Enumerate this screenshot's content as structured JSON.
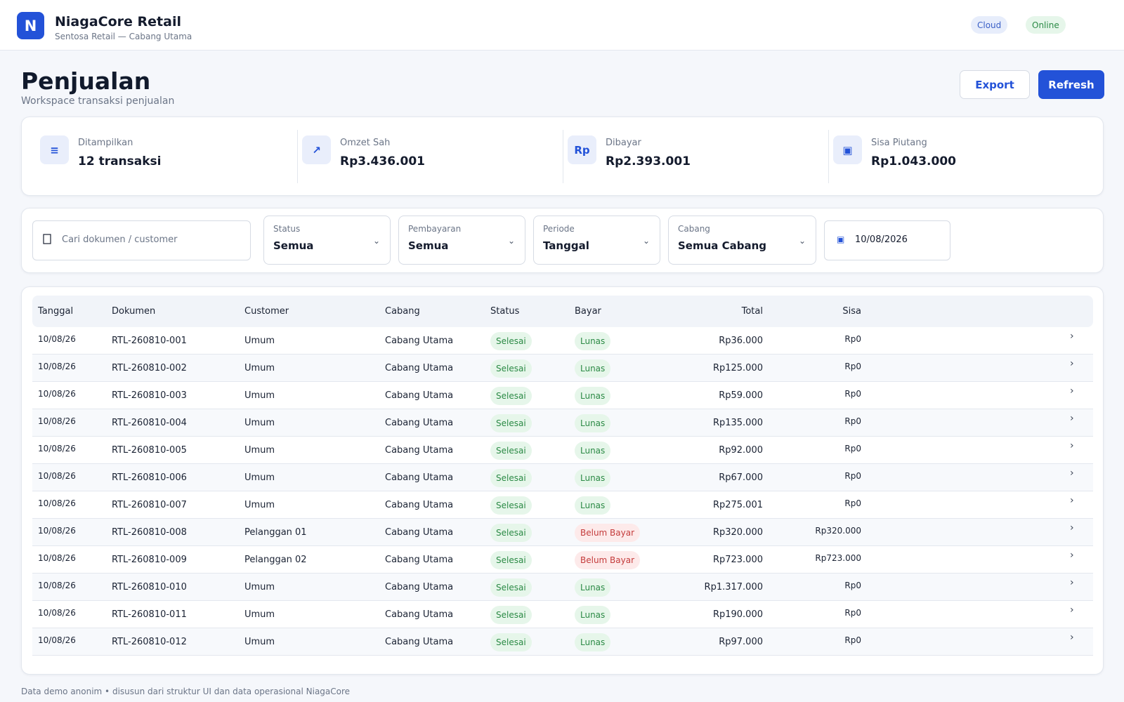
{
  "app": {
    "logo_letter": "N",
    "name": "NiagaCore Retail",
    "subtitle": "Sentosa Retail — Cabang Utama",
    "pills": {
      "cloud": "Cloud",
      "online": "Online"
    }
  },
  "header": {
    "title": "Penjualan",
    "subtitle": "Workspace transaksi penjualan",
    "export_label": "Export",
    "refresh_label": "Refresh"
  },
  "stats": [
    {
      "icon": "≡",
      "icon_name": "list-icon",
      "label": "Ditampilkan",
      "value": "12 transaksi"
    },
    {
      "icon": "↗",
      "icon_name": "trend-up-icon",
      "label": "Omzet Sah",
      "value": "Rp3.436.001"
    },
    {
      "icon": "Rp",
      "icon_name": "rupiah-icon",
      "label": "Dibayar",
      "value": "Rp2.393.001"
    },
    {
      "icon": "▣",
      "icon_name": "receivable-icon",
      "label": "Sisa Piutang",
      "value": "Rp1.043.000"
    }
  ],
  "filters": {
    "search_placeholder": "Cari dokumen / customer",
    "selects": [
      {
        "label": "Status",
        "value": "Semua"
      },
      {
        "label": "Pembayaran",
        "value": "Semua"
      },
      {
        "label": "Periode",
        "value": "Tanggal"
      },
      {
        "label": "Cabang",
        "value": "Semua Cabang"
      }
    ],
    "date_value": "10/08/2026"
  },
  "table": {
    "columns": [
      "Tanggal",
      "Dokumen",
      "Customer",
      "Cabang",
      "Status",
      "Bayar",
      "Total",
      "Sisa"
    ],
    "rows": [
      {
        "date": "10/08/26",
        "doc": "RTL-260810-001",
        "customer": "Umum",
        "branch": "Cabang Utama",
        "status": "Selesai",
        "pay": "Lunas",
        "total": "Rp36.000",
        "rest": "Rp0"
      },
      {
        "date": "10/08/26",
        "doc": "RTL-260810-002",
        "customer": "Umum",
        "branch": "Cabang Utama",
        "status": "Selesai",
        "pay": "Lunas",
        "total": "Rp125.000",
        "rest": "Rp0"
      },
      {
        "date": "10/08/26",
        "doc": "RTL-260810-003",
        "customer": "Umum",
        "branch": "Cabang Utama",
        "status": "Selesai",
        "pay": "Lunas",
        "total": "Rp59.000",
        "rest": "Rp0"
      },
      {
        "date": "10/08/26",
        "doc": "RTL-260810-004",
        "customer": "Umum",
        "branch": "Cabang Utama",
        "status": "Selesai",
        "pay": "Lunas",
        "total": "Rp135.000",
        "rest": "Rp0"
      },
      {
        "date": "10/08/26",
        "doc": "RTL-260810-005",
        "customer": "Umum",
        "branch": "Cabang Utama",
        "status": "Selesai",
        "pay": "Lunas",
        "total": "Rp92.000",
        "rest": "Rp0"
      },
      {
        "date": "10/08/26",
        "doc": "RTL-260810-006",
        "customer": "Umum",
        "branch": "Cabang Utama",
        "status": "Selesai",
        "pay": "Lunas",
        "total": "Rp67.000",
        "rest": "Rp0"
      },
      {
        "date": "10/08/26",
        "doc": "RTL-260810-007",
        "customer": "Umum",
        "branch": "Cabang Utama",
        "status": "Selesai",
        "pay": "Lunas",
        "total": "Rp275.001",
        "rest": "Rp0"
      },
      {
        "date": "10/08/26",
        "doc": "RTL-260810-008",
        "customer": "Pelanggan 01",
        "branch": "Cabang Utama",
        "status": "Selesai",
        "pay": "Belum Bayar",
        "total": "Rp320.000",
        "rest": "Rp320.000"
      },
      {
        "date": "10/08/26",
        "doc": "RTL-260810-009",
        "customer": "Pelanggan 02",
        "branch": "Cabang Utama",
        "status": "Selesai",
        "pay": "Belum Bayar",
        "total": "Rp723.000",
        "rest": "Rp723.000"
      },
      {
        "date": "10/08/26",
        "doc": "RTL-260810-010",
        "customer": "Umum",
        "branch": "Cabang Utama",
        "status": "Selesai",
        "pay": "Lunas",
        "total": "Rp1.317.000",
        "rest": "Rp0"
      },
      {
        "date": "10/08/26",
        "doc": "RTL-260810-011",
        "customer": "Umum",
        "branch": "Cabang Utama",
        "status": "Selesai",
        "pay": "Lunas",
        "total": "Rp190.000",
        "rest": "Rp0"
      },
      {
        "date": "10/08/26",
        "doc": "RTL-260810-012",
        "customer": "Umum",
        "branch": "Cabang Utama",
        "status": "Selesai",
        "pay": "Lunas",
        "total": "Rp97.000",
        "rest": "Rp0"
      }
    ]
  },
  "footer": "Data demo anonim • disusun dari struktur UI dan data operasional NiagaCore",
  "colors": {
    "primary": "#2352d8",
    "success_bg": "#e6f6ea",
    "success_fg": "#2b8a45",
    "danger_bg": "#fdeaea",
    "danger_fg": "#c43b3b"
  }
}
